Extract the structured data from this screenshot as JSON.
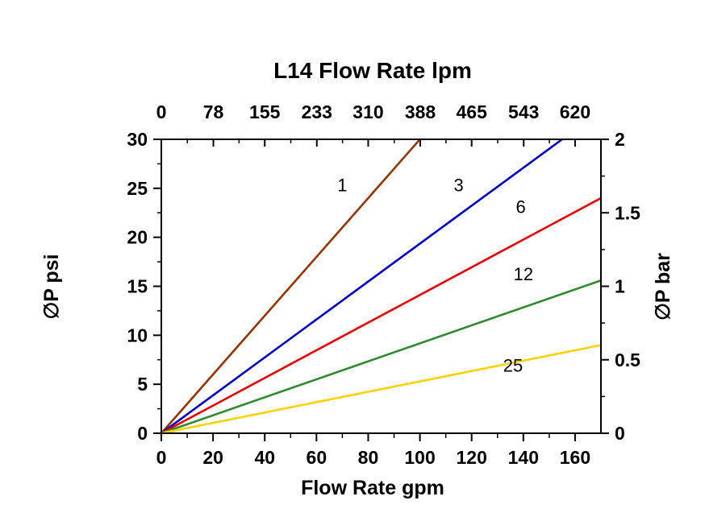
{
  "chart_data": {
    "type": "line",
    "title": "L14  Flow Rate lpm",
    "xlabel_bottom": "Flow Rate gpm",
    "ylabel_left": "∅P psi",
    "ylabel_right": "∅P bar",
    "x_bottom_ticks": [
      0,
      20,
      40,
      60,
      80,
      100,
      120,
      140,
      160
    ],
    "x_top_ticks": [
      0,
      78,
      155,
      233,
      310,
      388,
      465,
      543,
      620
    ],
    "y_left_ticks": [
      0,
      5,
      10,
      15,
      20,
      25,
      30
    ],
    "y_right_ticks": [
      "0",
      "0.5",
      "1",
      "1.5",
      "2"
    ],
    "y_right_values": [
      0,
      0.5,
      1,
      1.5,
      2
    ],
    "xlim_gpm": [
      0,
      170
    ],
    "ylim_psi": [
      0,
      30
    ],
    "ylim_bar": [
      0,
      2
    ],
    "axis_color": "#000000",
    "series": [
      {
        "label": "1",
        "color": "#993300",
        "points": [
          [
            0,
            0
          ],
          [
            100,
            30
          ]
        ],
        "label_pos": [
          70,
          24.7
        ]
      },
      {
        "label": "3",
        "color": "#0000CC",
        "points": [
          [
            0,
            0
          ],
          [
            155,
            30
          ]
        ],
        "label_pos": [
          115,
          24.7
        ]
      },
      {
        "label": "6",
        "color": "#EE0000",
        "points": [
          [
            0,
            0
          ],
          [
            170,
            24.0
          ]
        ],
        "label_pos": [
          139,
          22.5
        ]
      },
      {
        "label": "12",
        "color": "#2E8B2E",
        "points": [
          [
            0,
            0
          ],
          [
            170,
            15.6
          ]
        ],
        "label_pos": [
          140,
          15.6
        ]
      },
      {
        "label": "25",
        "color": "#FFD200",
        "points": [
          [
            0,
            0
          ],
          [
            170,
            9.0
          ]
        ],
        "label_pos": [
          136,
          6.3
        ]
      }
    ]
  }
}
